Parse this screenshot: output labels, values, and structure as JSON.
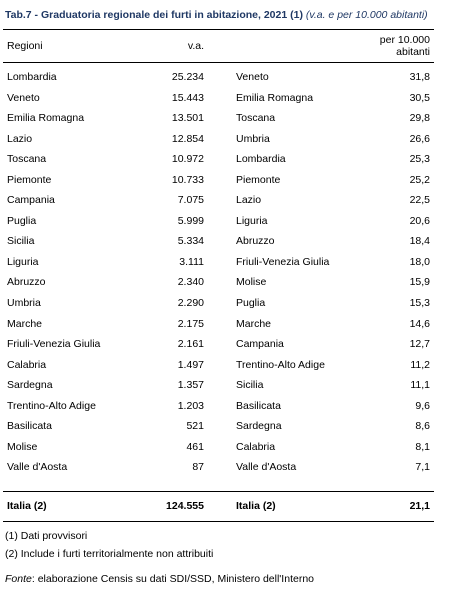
{
  "title": {
    "main": "Tab.7 - Graduatoria regionale dei furti in abitazione, 2021 (1)",
    "note": "(v.a. e per 10.000 abitanti)"
  },
  "headers": {
    "regioni": "Regioni",
    "va": "v.a.",
    "per_line1": "per 10.000",
    "per_line2": "abitanti"
  },
  "rows": [
    {
      "region_va": "Lombardia",
      "va": "25.234",
      "region_rate": "Veneto",
      "rate": "31,8"
    },
    {
      "region_va": "Veneto",
      "va": "15.443",
      "region_rate": "Emilia Romagna",
      "rate": "30,5"
    },
    {
      "region_va": "Emilia Romagna",
      "va": "13.501",
      "region_rate": "Toscana",
      "rate": "29,8"
    },
    {
      "region_va": "Lazio",
      "va": "12.854",
      "region_rate": "Umbria",
      "rate": "26,6"
    },
    {
      "region_va": "Toscana",
      "va": "10.972",
      "region_rate": "Lombardia",
      "rate": "25,3"
    },
    {
      "region_va": "Piemonte",
      "va": "10.733",
      "region_rate": "Piemonte",
      "rate": "25,2"
    },
    {
      "region_va": "Campania",
      "va": "7.075",
      "region_rate": "Lazio",
      "rate": "22,5"
    },
    {
      "region_va": "Puglia",
      "va": "5.999",
      "region_rate": "Liguria",
      "rate": "20,6"
    },
    {
      "region_va": "Sicilia",
      "va": "5.334",
      "region_rate": "Abruzzo",
      "rate": "18,4"
    },
    {
      "region_va": "Liguria",
      "va": "3.111",
      "region_rate": "Friuli-Venezia Giulia",
      "rate": "18,0"
    },
    {
      "region_va": "Abruzzo",
      "va": "2.340",
      "region_rate": "Molise",
      "rate": "15,9"
    },
    {
      "region_va": "Umbria",
      "va": "2.290",
      "region_rate": "Puglia",
      "rate": "15,3"
    },
    {
      "region_va": "Marche",
      "va": "2.175",
      "region_rate": "Marche",
      "rate": "14,6"
    },
    {
      "region_va": "Friuli-Venezia Giulia",
      "va": "2.161",
      "region_rate": "Campania",
      "rate": "12,7"
    },
    {
      "region_va": "Calabria",
      "va": "1.497",
      "region_rate": "Trentino-Alto Adige",
      "rate": "11,2"
    },
    {
      "region_va": "Sardegna",
      "va": "1.357",
      "region_rate": "Sicilia",
      "rate": "11,1"
    },
    {
      "region_va": "Trentino-Alto Adige",
      "va": "1.203",
      "region_rate": "Basilicata",
      "rate": "9,6"
    },
    {
      "region_va": "Basilicata",
      "va": "521",
      "region_rate": "Sardegna",
      "rate": "8,6"
    },
    {
      "region_va": "Molise",
      "va": "461",
      "region_rate": "Calabria",
      "rate": "8,1"
    },
    {
      "region_va": "Valle d'Aosta",
      "va": "87",
      "region_rate": "Valle d'Aosta",
      "rate": "7,1"
    }
  ],
  "total": {
    "label_va": "Italia (2)",
    "va": "124.555",
    "label_rate": "Italia (2)",
    "rate": "21,1"
  },
  "footnotes": {
    "note1": "(1) Dati provvisori",
    "note2": "(2) Include i furti territorialmente non attribuiti",
    "source_label": "Fonte",
    "source_text": ": elaborazione Censis su dati SDI/SSD, Ministero dell'Interno"
  }
}
